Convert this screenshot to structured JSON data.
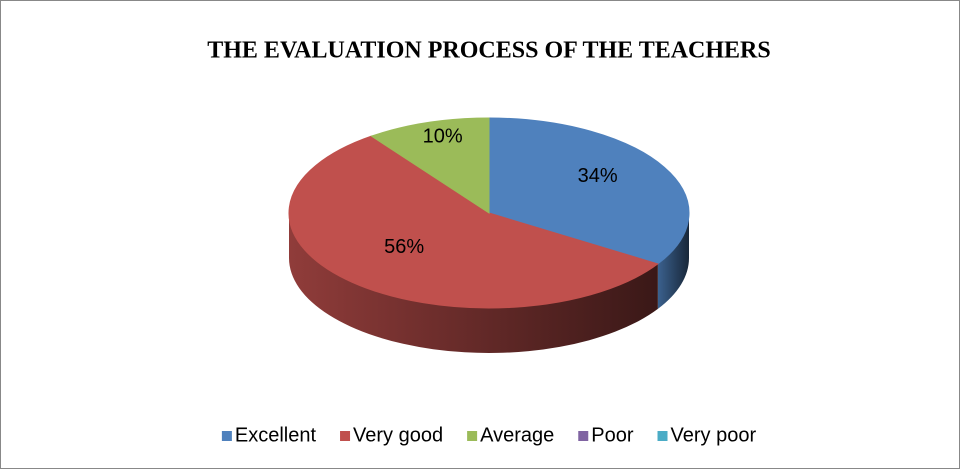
{
  "chart_data": {
    "type": "pie",
    "title": "THE EVALUATION PROCESS OF THE TEACHERS",
    "categories": [
      "Excellent",
      "Very good",
      "Average",
      "Poor",
      "Very poor"
    ],
    "values": [
      34,
      56,
      10,
      0,
      0
    ],
    "value_labels": [
      "34%",
      "56%",
      "10%",
      null,
      null
    ],
    "colors": [
      "#4f81bd",
      "#c0504d",
      "#9bbb59",
      "#8064a2",
      "#4bacc6"
    ],
    "legend": "bottom"
  }
}
